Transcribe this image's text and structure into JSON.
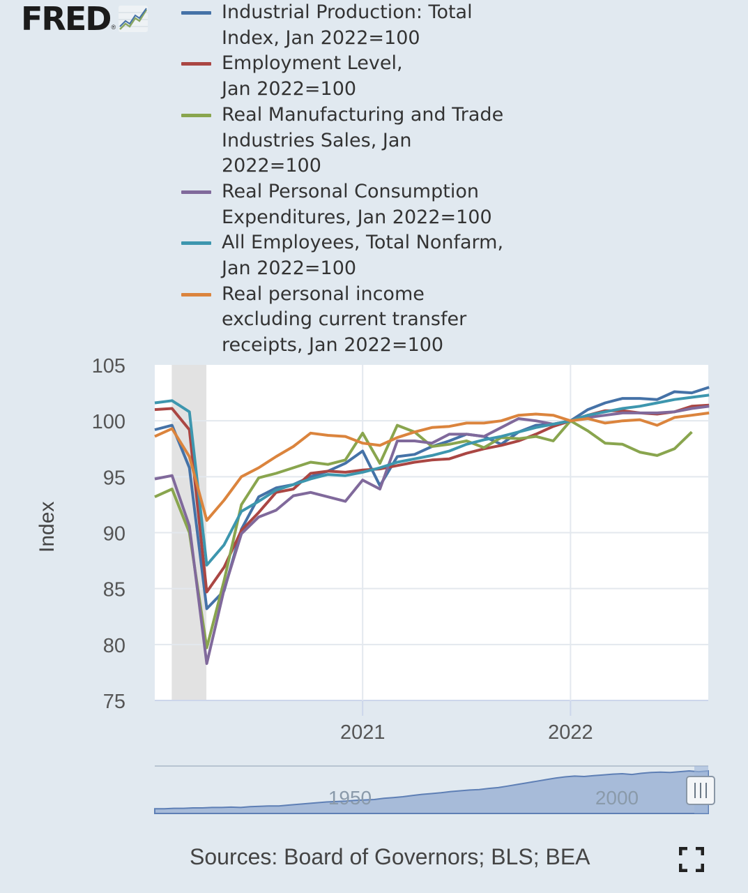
{
  "logo": {
    "text": "FRED",
    "reg": "®",
    "icon": "line-chart-icon"
  },
  "legend": [
    {
      "label": "Industrial Production: Total\nIndex, Jan 2022=100",
      "color": "#4572a7"
    },
    {
      "label": "Employment Level,\nJan 2022=100",
      "color": "#aa4643"
    },
    {
      "label": "Real Manufacturing and Trade\nIndustries Sales, Jan 2022=100",
      "color": "#89a54e"
    },
    {
      "label": "Real Personal Consumption\nExpenditures, Jan 2022=100",
      "color": "#80699b"
    },
    {
      "label": "All Employees, Total Nonfarm,\nJan 2022=100",
      "color": "#3d96ae"
    },
    {
      "label": "Real personal income\nexcluding current transfer\nreceipts, Jan 2022=100",
      "color": "#db843d"
    }
  ],
  "chart_data": {
    "type": "line",
    "title": "",
    "xlabel": "",
    "ylabel": "Index",
    "ylim": [
      75,
      105
    ],
    "yticks": [
      "105",
      "100",
      "95",
      "90",
      "85",
      "80",
      "75"
    ],
    "xticks": [
      "2021",
      "2022"
    ],
    "x": [
      "Jan 2020",
      "Feb 2020",
      "Mar 2020",
      "Apr 2020",
      "May 2020",
      "Jun 2020",
      "Jul 2020",
      "Aug 2020",
      "Sep 2020",
      "Oct 2020",
      "Nov 2020",
      "Dec 2020",
      "Jan 2021",
      "Feb 2021",
      "Mar 2021",
      "Apr 2021",
      "May 2021",
      "Jun 2021",
      "Jul 2021",
      "Aug 2021",
      "Sep 2021",
      "Oct 2021",
      "Nov 2021",
      "Dec 2021",
      "Jan 2022",
      "Feb 2022",
      "Mar 2022",
      "Apr 2022",
      "May 2022",
      "Jun 2022",
      "Jul 2022",
      "Aug 2022",
      "Sep 2022"
    ],
    "recession_shading": [
      "Feb 2020",
      "Apr 2020"
    ],
    "series": [
      {
        "name": "Industrial Production: Total Index, Jan 2022=100",
        "values": [
          99.2,
          99.6,
          95.8,
          83.2,
          84.8,
          90.3,
          93.2,
          94.0,
          94.3,
          95.0,
          95.5,
          96.2,
          97.3,
          94.2,
          96.8,
          97.0,
          97.7,
          98.2,
          98.8,
          98.6,
          97.9,
          99.0,
          99.6,
          99.7,
          100.0,
          101.0,
          101.6,
          102.0,
          102.0,
          101.9,
          102.6,
          102.5,
          103.0
        ]
      },
      {
        "name": "Employment Level, Jan 2022=100",
        "values": [
          101.0,
          101.1,
          99.2,
          84.7,
          86.9,
          90.2,
          91.8,
          93.6,
          93.9,
          95.3,
          95.5,
          95.4,
          95.6,
          95.7,
          96.0,
          96.3,
          96.5,
          96.6,
          97.1,
          97.5,
          97.8,
          98.2,
          98.8,
          99.5,
          100.0,
          100.5,
          100.9,
          100.9,
          100.7,
          100.6,
          100.8,
          101.3,
          101.4
        ]
      },
      {
        "name": "Real Manufacturing and Trade Industries Sales, Jan 2022=100",
        "values": [
          93.2,
          93.9,
          90.0,
          79.7,
          85.7,
          92.5,
          94.9,
          95.3,
          95.8,
          96.3,
          96.1,
          96.5,
          98.9,
          96.2,
          99.6,
          99.0,
          97.7,
          97.9,
          98.2,
          97.6,
          98.5,
          98.4,
          98.6,
          98.2,
          100.0,
          99.1,
          98.0,
          97.9,
          97.2,
          96.9,
          97.5,
          99.0,
          null
        ]
      },
      {
        "name": "Real Personal Consumption Expenditures, Jan 2022=100",
        "values": [
          94.8,
          95.1,
          90.6,
          78.3,
          84.9,
          89.9,
          91.4,
          92.0,
          93.3,
          93.6,
          93.2,
          92.8,
          94.7,
          93.9,
          98.2,
          98.2,
          98.0,
          98.8,
          98.8,
          98.6,
          99.4,
          100.2,
          100.0,
          99.7,
          100.0,
          100.3,
          100.5,
          100.7,
          100.7,
          100.7,
          100.8,
          101.1,
          101.3
        ]
      },
      {
        "name": "All Employees, Total Nonfarm, Jan 2022=100",
        "values": [
          101.6,
          101.8,
          100.8,
          87.1,
          88.9,
          91.9,
          92.8,
          93.8,
          94.3,
          94.8,
          95.2,
          95.1,
          95.4,
          95.8,
          96.3,
          96.6,
          96.9,
          97.3,
          97.9,
          98.3,
          98.6,
          99.0,
          99.4,
          99.7,
          100.0,
          100.5,
          100.8,
          101.1,
          101.3,
          101.6,
          101.9,
          102.1,
          102.3
        ]
      },
      {
        "name": "Real personal income excluding current transfer receipts, Jan 2022=100",
        "values": [
          98.6,
          99.3,
          96.8,
          91.1,
          92.9,
          95.0,
          95.8,
          96.8,
          97.7,
          98.9,
          98.7,
          98.6,
          98.0,
          97.8,
          98.5,
          99.0,
          99.4,
          99.5,
          99.8,
          99.8,
          100.0,
          100.5,
          100.6,
          100.5,
          100.0,
          100.2,
          99.8,
          100.0,
          100.1,
          99.6,
          100.3,
          100.5,
          100.7
        ]
      }
    ]
  },
  "navigator": {
    "tick_labels": [
      "1950",
      "2000"
    ],
    "handle_icon": "grip-handle-icon",
    "series_values": [
      0.05,
      0.05,
      0.06,
      0.06,
      0.07,
      0.07,
      0.08,
      0.08,
      0.09,
      0.08,
      0.1,
      0.11,
      0.12,
      0.12,
      0.14,
      0.16,
      0.18,
      0.2,
      0.22,
      0.23,
      0.24,
      0.26,
      0.27,
      0.28,
      0.31,
      0.33,
      0.35,
      0.38,
      0.41,
      0.43,
      0.45,
      0.48,
      0.5,
      0.52,
      0.53,
      0.56,
      0.58,
      0.62,
      0.66,
      0.7,
      0.74,
      0.78,
      0.82,
      0.85,
      0.87,
      0.86,
      0.88,
      0.9,
      0.92,
      0.93,
      0.91,
      0.94,
      0.96,
      0.97,
      0.96,
      0.98,
      1.0,
      0.98,
      1.0
    ]
  },
  "source": "Sources: Board of Governors; BLS; BEA",
  "fullscreen_icon": "fullscreen-icon"
}
